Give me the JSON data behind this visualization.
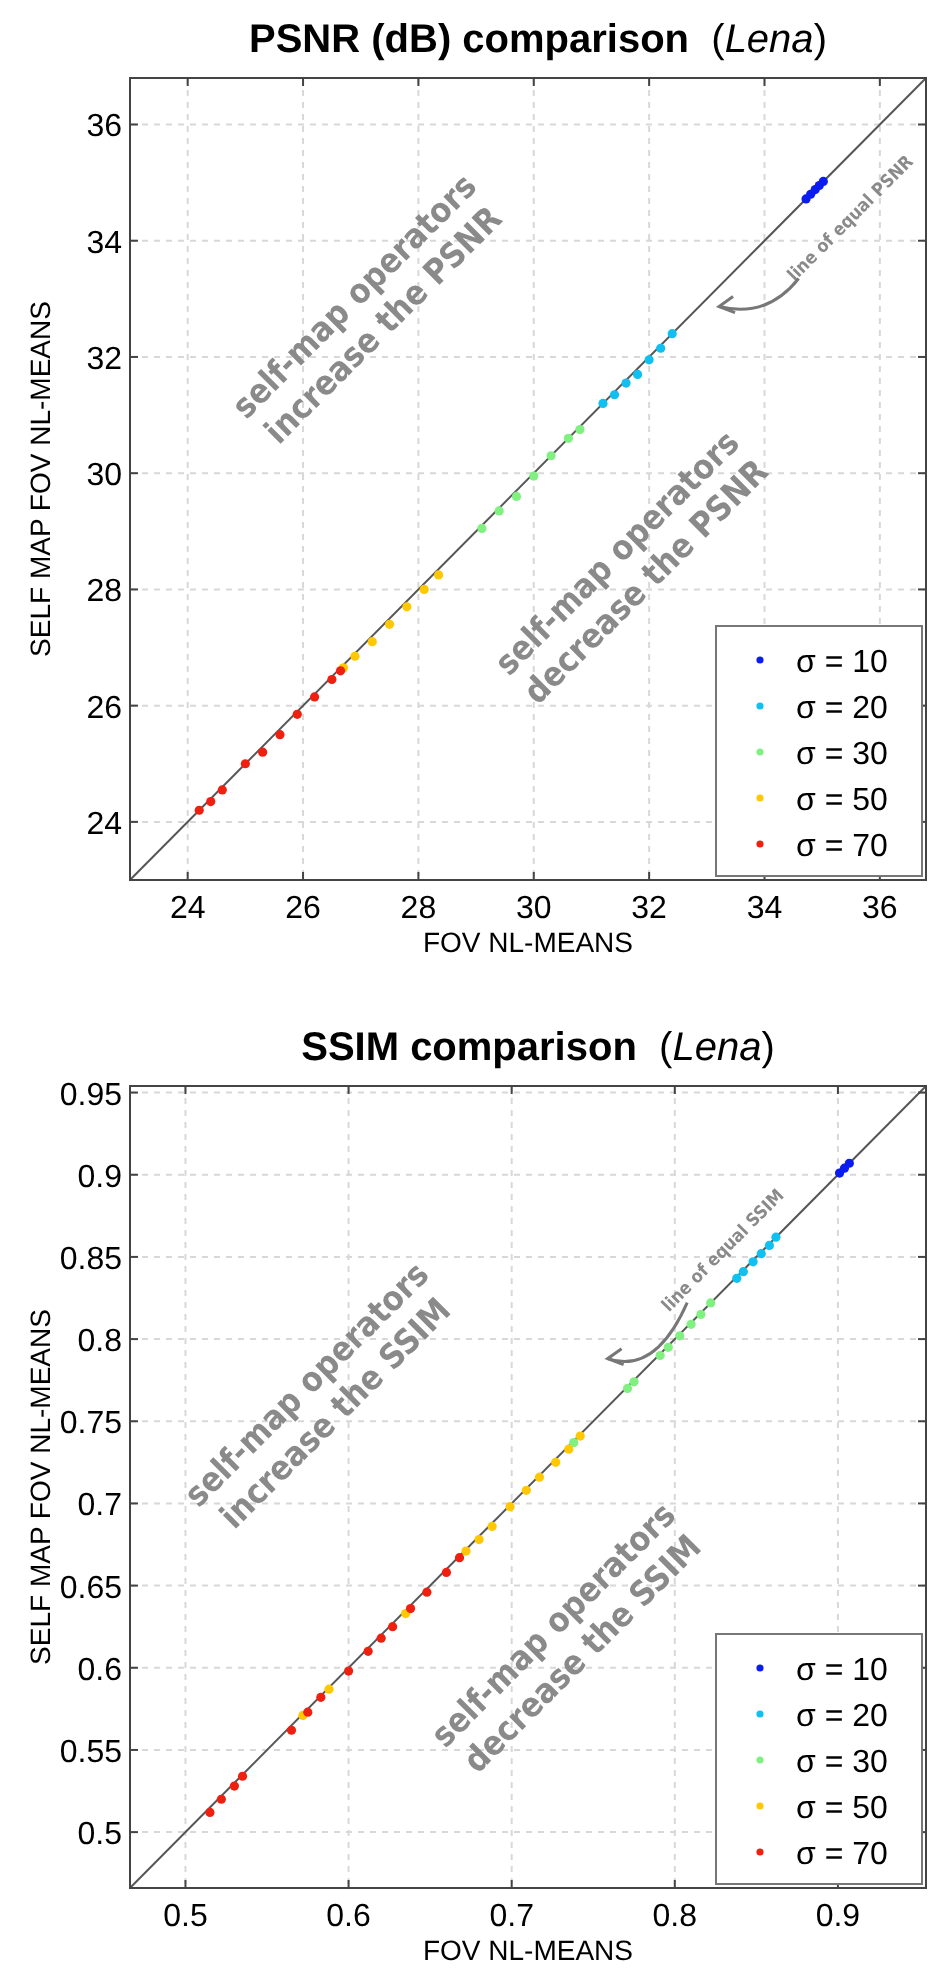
{
  "chart_data": [
    {
      "type": "scatter",
      "title": "PSNR (dB) comparison  (Lena)",
      "xlabel": "FOV NL-MEANS",
      "ylabel": "SELF MAP FOV NL-MEANS",
      "xlim": [
        23,
        36.8
      ],
      "ylim": [
        23,
        36.8
      ],
      "xticks": [
        24,
        26,
        28,
        30,
        32,
        34,
        36
      ],
      "yticks": [
        24,
        26,
        28,
        30,
        32,
        34,
        36
      ],
      "grid": true,
      "legend": "bottom right",
      "annotations": [
        "self-map operators\nincrease the PSNR",
        "self-map operators\ndecrease the PSNR",
        "line of equal PSNR"
      ],
      "series": [
        {
          "type": "line",
          "marker": "none",
          "color": "#555555",
          "x": [
            23,
            36.8
          ],
          "values": [
            23,
            36.8
          ]
        },
        {
          "name": "σ = 10",
          "color": "#0a1cf0",
          "x": [
            34.72,
            34.8,
            34.88,
            34.95,
            35.02
          ],
          "values": [
            34.72,
            34.8,
            34.88,
            34.95,
            35.02
          ]
        },
        {
          "name": "σ = 20",
          "color": "#10c0f0",
          "x": [
            31.2,
            31.4,
            31.6,
            31.8,
            32.0,
            32.2,
            32.4
          ],
          "values": [
            31.2,
            31.35,
            31.55,
            31.7,
            31.95,
            32.15,
            32.4
          ]
        },
        {
          "name": "σ = 30",
          "color": "#80f080",
          "x": [
            29.1,
            29.4,
            29.7,
            30.0,
            30.3,
            30.6,
            30.8
          ],
          "values": [
            29.05,
            29.35,
            29.6,
            29.95,
            30.3,
            30.6,
            30.75
          ]
        },
        {
          "name": "σ = 50",
          "color": "#ffc800",
          "x": [
            26.7,
            26.9,
            27.2,
            27.5,
            27.8,
            28.1,
            28.35
          ],
          "values": [
            26.65,
            26.85,
            27.1,
            27.4,
            27.7,
            28.0,
            28.25
          ]
        },
        {
          "name": "σ = 70",
          "color": "#f02010",
          "x": [
            24.2,
            24.4,
            24.6,
            25.0,
            25.3,
            25.6,
            25.9,
            26.2,
            26.5,
            26.65
          ],
          "values": [
            24.2,
            24.35,
            24.55,
            25.0,
            25.2,
            25.5,
            25.85,
            26.15,
            26.45,
            26.6
          ]
        }
      ]
    },
    {
      "type": "scatter",
      "title": "SSIM comparison  (Lena)",
      "xlabel": "FOV NL-MEANS",
      "ylabel": "SELF MAP FOV NL-MEANS",
      "xlim": [
        0.466,
        0.954
      ],
      "ylim": [
        0.466,
        0.954
      ],
      "xticks": [
        0.5,
        0.6,
        0.7,
        0.8,
        0.9
      ],
      "yticks": [
        0.5,
        0.55,
        0.6,
        0.65,
        0.7,
        0.75,
        0.8,
        0.85,
        0.9,
        0.95
      ],
      "grid": true,
      "legend": "bottom right",
      "annotations": [
        "self-map operators\nincrease the SSIM",
        "self-map operators\ndecrease the SSIM",
        "line of equal SSIM"
      ],
      "series": [
        {
          "type": "line",
          "marker": "none",
          "color": "#555555",
          "x": [
            0.466,
            0.954
          ],
          "values": [
            0.466,
            0.954
          ]
        },
        {
          "name": "σ = 10",
          "color": "#0a1cf0",
          "x": [
            0.901,
            0.904,
            0.907
          ],
          "values": [
            0.901,
            0.904,
            0.907
          ]
        },
        {
          "name": "σ = 20",
          "color": "#10c0f0",
          "x": [
            0.838,
            0.842,
            0.848,
            0.853,
            0.858,
            0.862
          ],
          "values": [
            0.837,
            0.841,
            0.847,
            0.852,
            0.857,
            0.862
          ]
        },
        {
          "name": "σ = 30",
          "color": "#80f080",
          "x": [
            0.738,
            0.771,
            0.775,
            0.791,
            0.796,
            0.803,
            0.81,
            0.816,
            0.822
          ],
          "values": [
            0.737,
            0.77,
            0.774,
            0.79,
            0.795,
            0.802,
            0.809,
            0.815,
            0.822
          ]
        },
        {
          "name": "σ = 50",
          "color": "#ffc800",
          "x": [
            0.572,
            0.588,
            0.635,
            0.672,
            0.68,
            0.688,
            0.699,
            0.709,
            0.717,
            0.727,
            0.735,
            0.742
          ],
          "values": [
            0.571,
            0.587,
            0.633,
            0.671,
            0.678,
            0.686,
            0.698,
            0.708,
            0.716,
            0.725,
            0.733,
            0.741
          ]
        },
        {
          "name": "σ = 70",
          "color": "#f02010",
          "x": [
            0.515,
            0.522,
            0.53,
            0.535,
            0.565,
            0.575,
            0.583,
            0.6,
            0.612,
            0.62,
            0.627,
            0.638,
            0.648,
            0.66,
            0.668
          ],
          "values": [
            0.512,
            0.52,
            0.528,
            0.534,
            0.562,
            0.573,
            0.582,
            0.598,
            0.61,
            0.618,
            0.625,
            0.636,
            0.646,
            0.658,
            0.667
          ]
        }
      ]
    }
  ]
}
